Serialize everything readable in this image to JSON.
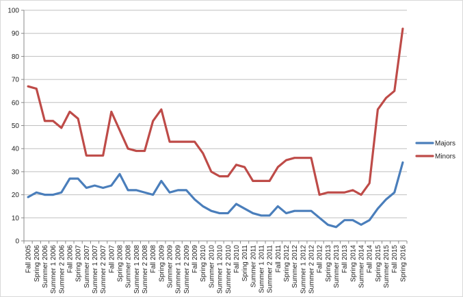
{
  "chart_data": {
    "type": "line",
    "title": "",
    "xlabel": "",
    "ylabel": "",
    "ylim": [
      0,
      100
    ],
    "yticks": [
      0,
      10,
      20,
      30,
      40,
      50,
      60,
      70,
      80,
      90,
      100
    ],
    "grid": true,
    "legend": "right",
    "categories": [
      "Fall 2005",
      "Spring 2006",
      "Summer 2006",
      "Summer 1 2006",
      "Summer 2 2006",
      "Fall 2006",
      "Spring 2007",
      "Summer 2007",
      "Summer 1 2007",
      "Summer 2 2007",
      "Fall 2007",
      "Spring 2008",
      "Summer 2008",
      "Summer 1 2008",
      "Summer 2 2008",
      "Fall 2008",
      "Spring 2009",
      "Summer 2009",
      "Summer 1 2009",
      "Summer 2 2009",
      "Fall 2009",
      "Spring 2010",
      "Summer 2010",
      "Summer 1 2010",
      "Summer 2 2010",
      "Fall 2010",
      "Spring 2011",
      "Summer 2011",
      "Summer 1 2011",
      "Summer 2 2011",
      "Fall 2011",
      "Spring 2012",
      "Summer 2012",
      "Summer 1 2012",
      "Summer 2 2012",
      "Fall 2012",
      "Spring 2013",
      "Summer 2013",
      "Fall 2013",
      "Spring 2014",
      "Summer 2014",
      "Fall 2014",
      "Spring 2015",
      "Summer 2015",
      "Fall 2015",
      "Spring 2016"
    ],
    "series": [
      {
        "name": "Majors",
        "color": "#4a7ebb",
        "values": [
          19,
          21,
          20,
          20,
          21,
          27,
          27,
          23,
          24,
          23,
          24,
          29,
          22,
          22,
          21,
          20,
          26,
          21,
          22,
          22,
          18,
          15,
          13,
          12,
          12,
          16,
          14,
          12,
          11,
          11,
          15,
          12,
          13,
          13,
          13,
          10,
          7,
          6,
          9,
          9,
          7,
          9,
          14,
          18,
          21,
          34
        ]
      },
      {
        "name": "Minors",
        "color": "#be4b48",
        "values": [
          67,
          66,
          52,
          52,
          49,
          56,
          53,
          37,
          37,
          37,
          56,
          48,
          40,
          39,
          39,
          52,
          57,
          43,
          43,
          43,
          43,
          38,
          30,
          28,
          28,
          33,
          32,
          26,
          26,
          26,
          32,
          35,
          36,
          36,
          36,
          20,
          21,
          21,
          21,
          22,
          20,
          25,
          57,
          62,
          65,
          92
        ]
      }
    ]
  }
}
